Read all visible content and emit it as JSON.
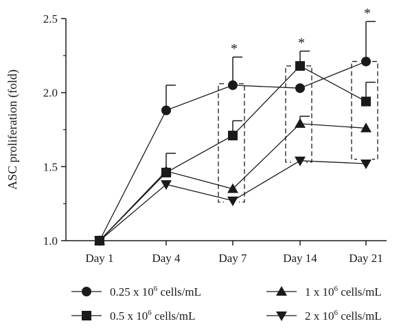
{
  "chart_data": {
    "type": "line",
    "title": "",
    "ylabel": "ASC proliferation (fold)",
    "xlabel": "",
    "categories": [
      "Day 1",
      "Day 4",
      "Day 7",
      "Day 14",
      "Day 21"
    ],
    "ylim": [
      1.0,
      2.5
    ],
    "yticks": [
      "1.0",
      "1.5",
      "2.0",
      "2.5"
    ],
    "grid": false,
    "legend_position": "bottom",
    "series": [
      {
        "name": "0.25 x 10^6 cells/mL",
        "legend_prefix": "0.25 x 10",
        "legend_exp": "6",
        "legend_suffix": " cells/mL",
        "marker": "circle",
        "values": [
          1.0,
          1.88,
          2.05,
          2.03,
          2.21
        ],
        "errors": [
          0,
          0.17,
          0.19,
          0,
          0.27
        ]
      },
      {
        "name": "0.5 x 10^6 cells/mL",
        "legend_prefix": "0.5 x 10",
        "legend_exp": "6",
        "legend_suffix": " cells/mL",
        "marker": "square",
        "values": [
          1.0,
          1.46,
          1.71,
          2.18,
          1.94
        ],
        "errors": [
          0,
          0.13,
          0.1,
          0.1,
          0.13
        ]
      },
      {
        "name": "1 x 10^6 cells/mL",
        "legend_prefix": "1 x 10",
        "legend_exp": "6",
        "legend_suffix": " cells/mL",
        "marker": "triangle-up",
        "values": [
          1.0,
          1.47,
          1.35,
          1.79,
          1.76
        ],
        "errors": [
          0,
          0,
          0,
          0.05,
          0
        ]
      },
      {
        "name": "2 x 10^6 cells/mL",
        "legend_prefix": "2 x 10",
        "legend_exp": "6",
        "legend_suffix": " cells/mL",
        "marker": "triangle-down",
        "values": [
          1.0,
          1.38,
          1.27,
          1.54,
          1.52
        ],
        "errors": [
          0,
          0,
          0,
          0,
          0
        ]
      }
    ],
    "significance": [
      {
        "category": "Day 7",
        "label": "*",
        "range": [
          1.26,
          2.06
        ]
      },
      {
        "category": "Day 14",
        "label": "*",
        "range": [
          1.53,
          2.18
        ]
      },
      {
        "category": "Day 21",
        "label": "*",
        "range": [
          1.55,
          2.21
        ]
      }
    ]
  }
}
